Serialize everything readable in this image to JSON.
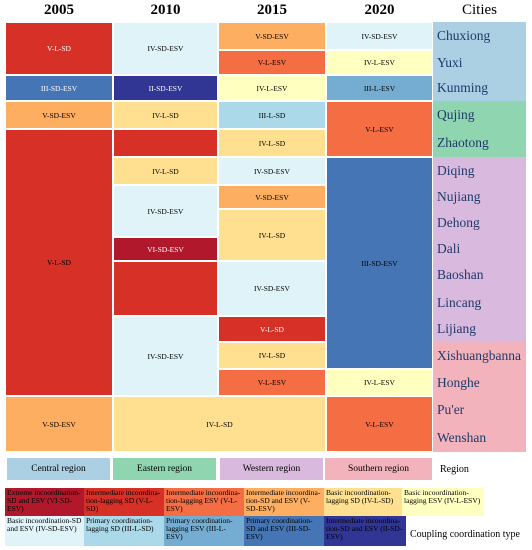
{
  "headers": {
    "y2005": "2005",
    "y2010": "2010",
    "y2015": "2015",
    "y2020": "2020",
    "cities": "Cities"
  },
  "colors": {
    "I_L_SD": "#b2182b",
    "II_L_SD": "#d73027",
    "II_L_ESV": "#f46d43",
    "III_SD_ESV": "#fdae61",
    "IV_L_SD": "#fee090",
    "IV_L_ESV": "#ffffbf",
    "IV_SD_ESV": "#e0f3f8",
    "V_L_SD": "#abd9e9",
    "V_L_ESV": "#74add1",
    "V_SD_ESV": "#4575b4",
    "VI_SD_ESV": "#313695"
  },
  "cities": [
    "Chuxiong",
    "Yuxi",
    "Kunming",
    "Qujing",
    "Zhaotong",
    "Diqing",
    "Nujiang",
    "Dehong",
    "Dali",
    "Baoshan",
    "Lincang",
    "Lijiang",
    "Xishuangbanna",
    "Honghe",
    "Pu'er",
    "Wenshan"
  ],
  "cells": {
    "c2005_1": "V-L-SD",
    "c2005_2": "III-SD-ESV",
    "c2005_3": "V-SD-ESV",
    "c2005_4": "V-L-SD",
    "c2005_5": "V-SD-ESV",
    "c2010_1": "IV-SD-ESV",
    "c2010_2": "II-SD-ESV",
    "c2010_3": "IV-L-SD",
    "c2010_4": "IV-L-SD",
    "c2010_5": "IV-SD-ESV",
    "c2010_6": "VI-SD-ESV",
    "c2010_7": "IV-SD-ESV",
    "c2010_8": "IV-L-SD",
    "c2015_1": "V-SD-ESV",
    "c2015_2": "V-L-ESV",
    "c2015_3": "IV-L-ESV",
    "c2015_4": "III-L-SD",
    "c2015_5": "IV-L-SD",
    "c2015_6": "IV-SD-ESV",
    "c2015_7": "V-SD-ESV",
    "c2015_8": "IV-L-SD",
    "c2015_9": "IV-SD-ESV",
    "c2015_10": "V-L-SD",
    "c2015_11": "IV-L-SD",
    "c2015_12": "V-L-ESV",
    "c2020_1": "IV-SD-ESV",
    "c2020_2": "IV-L-ESV",
    "c2020_3": "III-L-ESV",
    "c2020_4": "V-L-ESV",
    "c2020_5": "III-SD-ESV",
    "c2020_6": "IV-L-ESV",
    "c2020_7": "V-L-ESV"
  },
  "regions": {
    "central": "Central region",
    "eastern": "Eastern region",
    "western": "Western region",
    "southern": "Southern region",
    "title": "Region"
  },
  "legend": {
    "title": "Coupling coordination type",
    "items": [
      "Extreme incoordination-SD and ESV (VI-SD-ESV)",
      "Intermediate incoordina-tion-lagging SD (V-L-SD)",
      "Intermediate incoordina-tion-lagging ESV (V-L-ESV)",
      "Intermediate incoordina-tion-SD and ESV (V-SD-ESV)",
      "Basic incoordination-lagging SD (IV-L-SD)",
      "Basic incoordination-lagging ESV (IV-L-ESV)",
      "Basic incoordination-SD and ESV (IV-SD-ESV)",
      "Primary coordination-lagging SD (III-L-SD)",
      "Primary coordination-lagging ESV (III-L-ESV)",
      "Primary coordination-SD and ESV (III-SD-ESV)",
      "Intermediate incoordina-tion-SD and ESV (II-SD-ESV)"
    ]
  }
}
